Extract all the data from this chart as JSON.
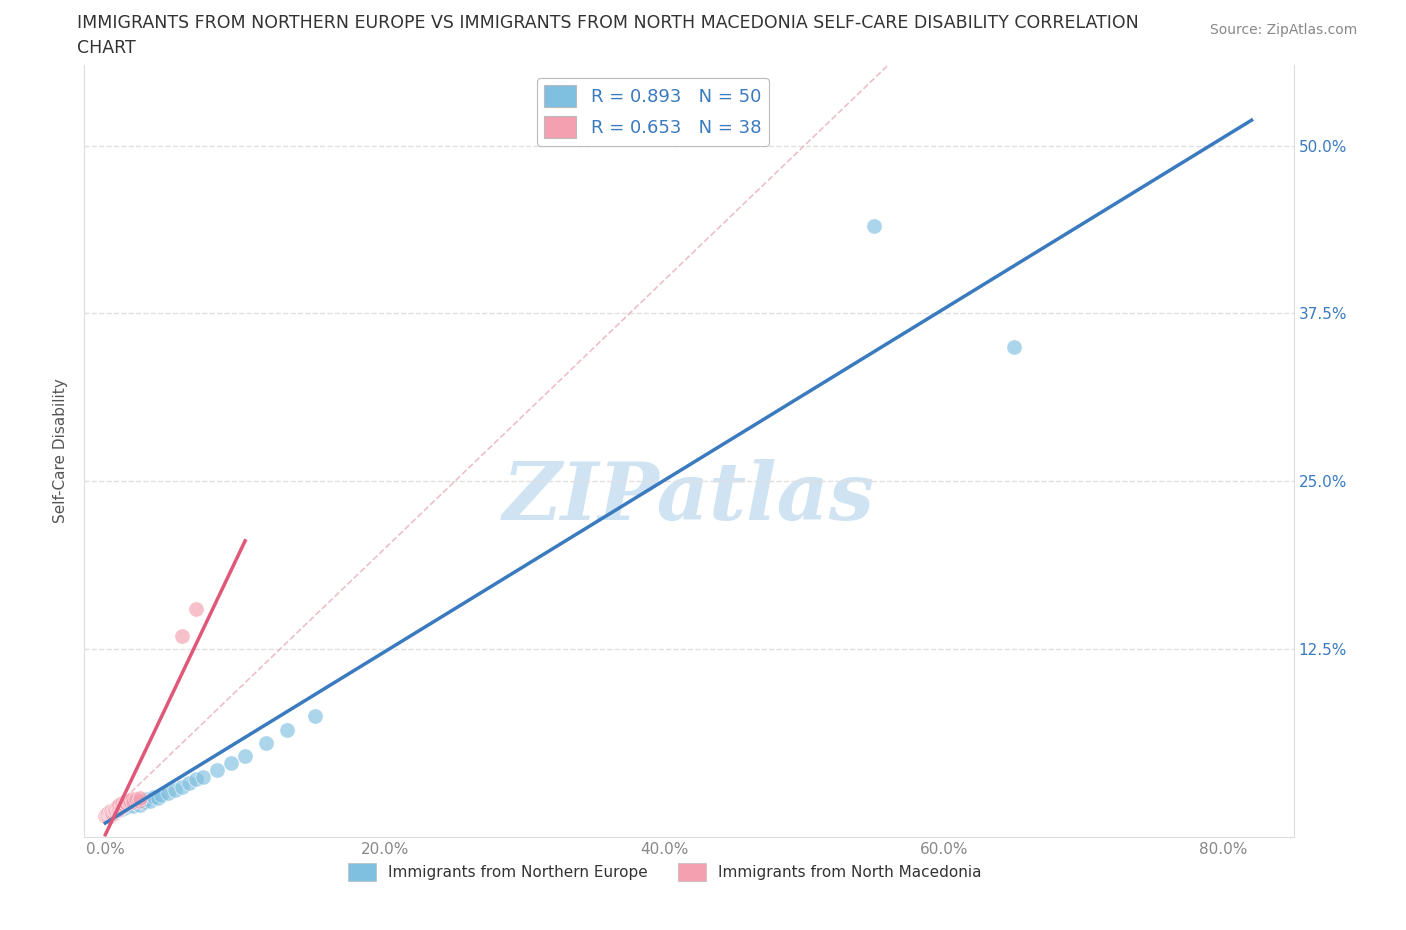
{
  "title_line1": "IMMIGRANTS FROM NORTHERN EUROPE VS IMMIGRANTS FROM NORTH MACEDONIA SELF-CARE DISABILITY CORRELATION",
  "title_line2": "CHART",
  "source": "Source: ZipAtlas.com",
  "ylabel": "Self-Care Disability",
  "x_ticks": [
    0.0,
    0.2,
    0.4,
    0.6,
    0.8
  ],
  "x_tick_labels": [
    "0.0%",
    "20.0%",
    "40.0%",
    "60.0%",
    "80.0%"
  ],
  "y_ticks": [
    0.0,
    0.125,
    0.25,
    0.375,
    0.5
  ],
  "y_tick_labels_right": [
    "",
    "12.5%",
    "25.0%",
    "37.5%",
    "50.0%"
  ],
  "xlim": [
    -0.015,
    0.85
  ],
  "ylim": [
    -0.015,
    0.56
  ],
  "blue_R": 0.893,
  "blue_N": 50,
  "pink_R": 0.653,
  "pink_N": 38,
  "blue_color": "#7fbfdf",
  "pink_color": "#f4a0b0",
  "blue_line_color": "#3a7abf",
  "pink_line_color": "#e05878",
  "diagonal_color": "#d8d8d8",
  "grid_color": "#e0e0e0",
  "legend_label_blue": "Immigrants from Northern Europe",
  "legend_label_pink": "Immigrants from North Macedonia",
  "watermark_color": "#c8dff0",
  "blue_points_x": [
    0.001,
    0.001,
    0.002,
    0.002,
    0.003,
    0.003,
    0.003,
    0.004,
    0.004,
    0.005,
    0.005,
    0.006,
    0.007,
    0.007,
    0.008,
    0.008,
    0.009,
    0.01,
    0.01,
    0.011,
    0.012,
    0.013,
    0.013,
    0.015,
    0.016,
    0.018,
    0.02,
    0.022,
    0.025,
    0.025,
    0.028,
    0.03,
    0.032,
    0.035,
    0.038,
    0.04,
    0.045,
    0.05,
    0.055,
    0.06,
    0.065,
    0.07,
    0.08,
    0.09,
    0.1,
    0.115,
    0.13,
    0.15,
    0.55,
    0.65
  ],
  "blue_points_y": [
    0.001,
    0.002,
    0.001,
    0.003,
    0.001,
    0.002,
    0.004,
    0.002,
    0.003,
    0.002,
    0.004,
    0.003,
    0.004,
    0.006,
    0.005,
    0.007,
    0.006,
    0.005,
    0.008,
    0.007,
    0.006,
    0.008,
    0.01,
    0.007,
    0.009,
    0.01,
    0.008,
    0.01,
    0.009,
    0.012,
    0.011,
    0.013,
    0.012,
    0.015,
    0.014,
    0.016,
    0.018,
    0.02,
    0.022,
    0.025,
    0.028,
    0.03,
    0.035,
    0.04,
    0.045,
    0.055,
    0.065,
    0.075,
    0.44,
    0.35
  ],
  "pink_points_x": [
    0.0,
    0.001,
    0.001,
    0.002,
    0.002,
    0.003,
    0.003,
    0.003,
    0.004,
    0.004,
    0.005,
    0.005,
    0.006,
    0.006,
    0.007,
    0.007,
    0.008,
    0.008,
    0.009,
    0.009,
    0.01,
    0.01,
    0.011,
    0.012,
    0.012,
    0.013,
    0.014,
    0.015,
    0.016,
    0.017,
    0.018,
    0.019,
    0.02,
    0.022,
    0.024,
    0.025,
    0.055,
    0.065
  ],
  "pink_points_y": [
    0.001,
    0.001,
    0.002,
    0.001,
    0.003,
    0.001,
    0.002,
    0.003,
    0.002,
    0.004,
    0.002,
    0.003,
    0.003,
    0.005,
    0.004,
    0.006,
    0.005,
    0.007,
    0.005,
    0.008,
    0.006,
    0.009,
    0.007,
    0.008,
    0.01,
    0.009,
    0.011,
    0.01,
    0.012,
    0.011,
    0.012,
    0.013,
    0.011,
    0.013,
    0.012,
    0.014,
    0.135,
    0.155
  ]
}
